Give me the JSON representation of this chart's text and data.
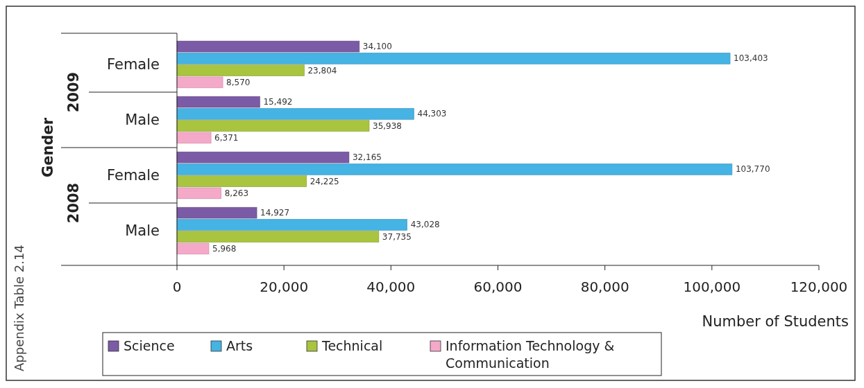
{
  "chart_data": {
    "type": "bar",
    "orientation": "horizontal",
    "ylabel": "Gender",
    "xlabel": "Number of Students",
    "categories": [
      "Female",
      "Male",
      "Female",
      "Male"
    ],
    "series": [
      {
        "name": "Science",
        "color": "#7b5aa6",
        "values": [
          34100,
          15492,
          32165,
          14927
        ],
        "value_labels": [
          "34,100",
          "15,492",
          "32,165",
          "14,927"
        ]
      },
      {
        "name": "Arts",
        "color": "#45b3e3",
        "values": [
          103403,
          44303,
          103770,
          43028
        ],
        "value_labels": [
          "103,403",
          "44,303",
          "103,770",
          "43,028"
        ]
      },
      {
        "name": "Technical",
        "color": "#a9c43f",
        "values": [
          23804,
          35938,
          24225,
          37735
        ],
        "value_labels": [
          "23,804",
          "35,938",
          "24,225",
          "37,735"
        ]
      },
      {
        "name": "Information Technology & Communication",
        "color": "#f5a9c9",
        "values": [
          8570,
          6371,
          8263,
          5968
        ],
        "value_labels": [
          "8,570",
          "6,371",
          "8,263",
          "5,968"
        ]
      }
    ],
    "xlim": [
      0,
      120000
    ],
    "xticks": [
      {
        "value": 0,
        "label": "0"
      },
      {
        "value": 20000,
        "label": "20,000"
      },
      {
        "value": 40000,
        "label": "40,000"
      },
      {
        "value": 60000,
        "label": "60,000"
      },
      {
        "value": 80000,
        "label": "80,000"
      },
      {
        "value": 100000,
        "label": "100,000"
      },
      {
        "value": 120000,
        "label": "120,000"
      }
    ],
    "legend": "bottom",
    "annotations": [
      "Appendix Table 2.14",
      "2009",
      "2008"
    ]
  }
}
